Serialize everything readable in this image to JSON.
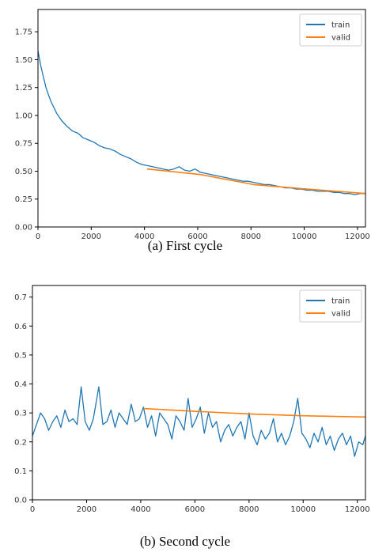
{
  "colors": {
    "train": "#1f77b4",
    "valid": "#ff7f0e",
    "axis": "#000000"
  },
  "chart_data": [
    {
      "type": "line",
      "caption": "(a) First cycle",
      "xlabel": "",
      "ylabel": "",
      "xlim": [
        0,
        12300
      ],
      "ylim": [
        0,
        1.95
      ],
      "xticks": [
        0,
        2000,
        4000,
        6000,
        8000,
        10000,
        12000
      ],
      "yticks": [
        0.0,
        0.25,
        0.5,
        0.75,
        1.0,
        1.25,
        1.5,
        1.75
      ],
      "ytick_labels": [
        "0.00",
        "0.25",
        "0.50",
        "0.75",
        "1.00",
        "1.25",
        "1.50",
        "1.75"
      ],
      "legend": "top-right",
      "grid": false,
      "series": [
        {
          "name": "train",
          "x": [
            0,
            100,
            200,
            300,
            400,
            500,
            700,
            900,
            1100,
            1300,
            1500,
            1700,
            1900,
            2100,
            2300,
            2500,
            2700,
            2900,
            3100,
            3300,
            3500,
            3700,
            3900,
            4100,
            4300,
            4500,
            4700,
            4900,
            5100,
            5300,
            5500,
            5700,
            5900,
            6100,
            6300,
            6500,
            6700,
            6900,
            7100,
            7300,
            7500,
            7700,
            7900,
            8100,
            8300,
            8500,
            8700,
            8900,
            9100,
            9300,
            9500,
            9700,
            9900,
            10100,
            10300,
            10500,
            10700,
            10900,
            11100,
            11300,
            11500,
            11700,
            11900,
            12100,
            12300
          ],
          "y": [
            1.58,
            1.45,
            1.35,
            1.25,
            1.18,
            1.12,
            1.02,
            0.95,
            0.9,
            0.86,
            0.84,
            0.8,
            0.78,
            0.76,
            0.73,
            0.71,
            0.7,
            0.68,
            0.65,
            0.63,
            0.61,
            0.58,
            0.56,
            0.55,
            0.54,
            0.53,
            0.52,
            0.51,
            0.52,
            0.54,
            0.51,
            0.5,
            0.52,
            0.49,
            0.48,
            0.47,
            0.46,
            0.45,
            0.44,
            0.43,
            0.42,
            0.41,
            0.41,
            0.4,
            0.39,
            0.38,
            0.38,
            0.37,
            0.36,
            0.35,
            0.35,
            0.34,
            0.34,
            0.33,
            0.33,
            0.32,
            0.32,
            0.32,
            0.31,
            0.31,
            0.3,
            0.3,
            0.29,
            0.3,
            0.3
          ]
        },
        {
          "name": "valid",
          "x": [
            4100,
            6100,
            8100,
            10100,
            12300
          ],
          "y": [
            0.52,
            0.47,
            0.38,
            0.34,
            0.3
          ]
        }
      ]
    },
    {
      "type": "line",
      "caption": "(b) Second cycle",
      "xlabel": "",
      "ylabel": "",
      "xlim": [
        0,
        12300
      ],
      "ylim": [
        0,
        0.74
      ],
      "xticks": [
        0,
        2000,
        4000,
        6000,
        8000,
        10000,
        12000
      ],
      "yticks": [
        0.0,
        0.1,
        0.2,
        0.3,
        0.4,
        0.5,
        0.6,
        0.7
      ],
      "ytick_labels": [
        "0.0",
        "0.1",
        "0.2",
        "0.3",
        "0.4",
        "0.5",
        "0.6",
        "0.7"
      ],
      "legend": "top-right",
      "grid": false,
      "series": [
        {
          "name": "train",
          "x": [
            0,
            150,
            300,
            450,
            600,
            750,
            900,
            1050,
            1200,
            1350,
            1500,
            1650,
            1800,
            1950,
            2100,
            2250,
            2450,
            2600,
            2750,
            2900,
            3050,
            3200,
            3350,
            3500,
            3650,
            3800,
            3950,
            4100,
            4250,
            4400,
            4550,
            4700,
            4850,
            5000,
            5150,
            5300,
            5450,
            5600,
            5750,
            5900,
            6050,
            6200,
            6350,
            6500,
            6650,
            6800,
            6950,
            7100,
            7250,
            7400,
            7550,
            7700,
            7850,
            8000,
            8150,
            8300,
            8450,
            8600,
            8750,
            8900,
            9050,
            9200,
            9350,
            9500,
            9650,
            9800,
            9950,
            10100,
            10250,
            10400,
            10550,
            10700,
            10850,
            11000,
            11150,
            11300,
            11450,
            11600,
            11750,
            11900,
            12050,
            12200,
            12300
          ],
          "y": [
            0.22,
            0.26,
            0.3,
            0.28,
            0.24,
            0.27,
            0.29,
            0.25,
            0.31,
            0.27,
            0.28,
            0.26,
            0.39,
            0.27,
            0.24,
            0.28,
            0.39,
            0.26,
            0.27,
            0.31,
            0.25,
            0.3,
            0.28,
            0.26,
            0.33,
            0.27,
            0.28,
            0.32,
            0.25,
            0.29,
            0.22,
            0.3,
            0.28,
            0.26,
            0.21,
            0.29,
            0.27,
            0.24,
            0.35,
            0.25,
            0.28,
            0.32,
            0.23,
            0.3,
            0.25,
            0.27,
            0.2,
            0.24,
            0.26,
            0.22,
            0.25,
            0.27,
            0.21,
            0.3,
            0.22,
            0.19,
            0.24,
            0.21,
            0.23,
            0.28,
            0.2,
            0.23,
            0.19,
            0.22,
            0.27,
            0.35,
            0.23,
            0.21,
            0.18,
            0.23,
            0.2,
            0.25,
            0.19,
            0.22,
            0.17,
            0.21,
            0.23,
            0.19,
            0.22,
            0.15,
            0.2,
            0.19,
            0.22
          ]
        },
        {
          "name": "valid",
          "x": [
            4100,
            6100,
            8100,
            10100,
            12300
          ],
          "y": [
            0.315,
            0.305,
            0.296,
            0.29,
            0.286
          ]
        }
      ]
    }
  ]
}
